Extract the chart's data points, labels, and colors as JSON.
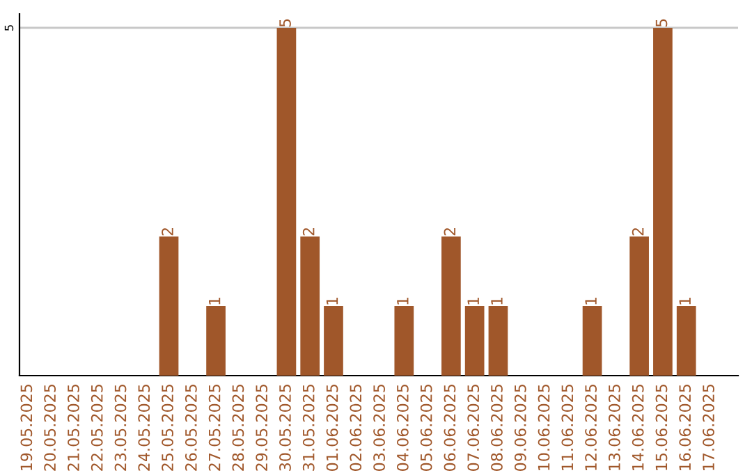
{
  "chart_data": {
    "type": "bar",
    "categories": [
      "19.05.2025",
      "20.05.2025",
      "21.05.2025",
      "22.05.2025",
      "23.05.2025",
      "24.05.2025",
      "25.05.2025",
      "26.05.2025",
      "27.05.2025",
      "28.05.2025",
      "29.05.2025",
      "30.05.2025",
      "31.05.2025",
      "01.06.2025",
      "02.06.2025",
      "03.06.2025",
      "04.06.2025",
      "05.06.2025",
      "06.06.2025",
      "07.06.2025",
      "08.06.2025",
      "09.06.2025",
      "10.06.2025",
      "11.06.2025",
      "12.06.2025",
      "13.06.2025",
      "14.06.2025",
      "15.06.2025",
      "16.06.2025",
      "17.06.2025"
    ],
    "values": [
      0,
      0,
      0,
      0,
      0,
      0,
      2,
      0,
      1,
      0,
      0,
      5,
      2,
      1,
      0,
      0,
      1,
      0,
      2,
      1,
      1,
      0,
      0,
      0,
      1,
      0,
      2,
      5,
      1,
      0
    ],
    "value_labels": [
      null,
      null,
      null,
      null,
      null,
      null,
      "2",
      null,
      "1",
      null,
      null,
      "5",
      "2",
      "1",
      null,
      null,
      "1",
      null,
      "2",
      "1",
      "1",
      null,
      null,
      null,
      "1",
      null,
      "2",
      "5",
      "1",
      null
    ],
    "color": "#a0572a",
    "ylim": [
      0,
      5.2
    ],
    "yticks": [
      5
    ],
    "grid": "y"
  }
}
